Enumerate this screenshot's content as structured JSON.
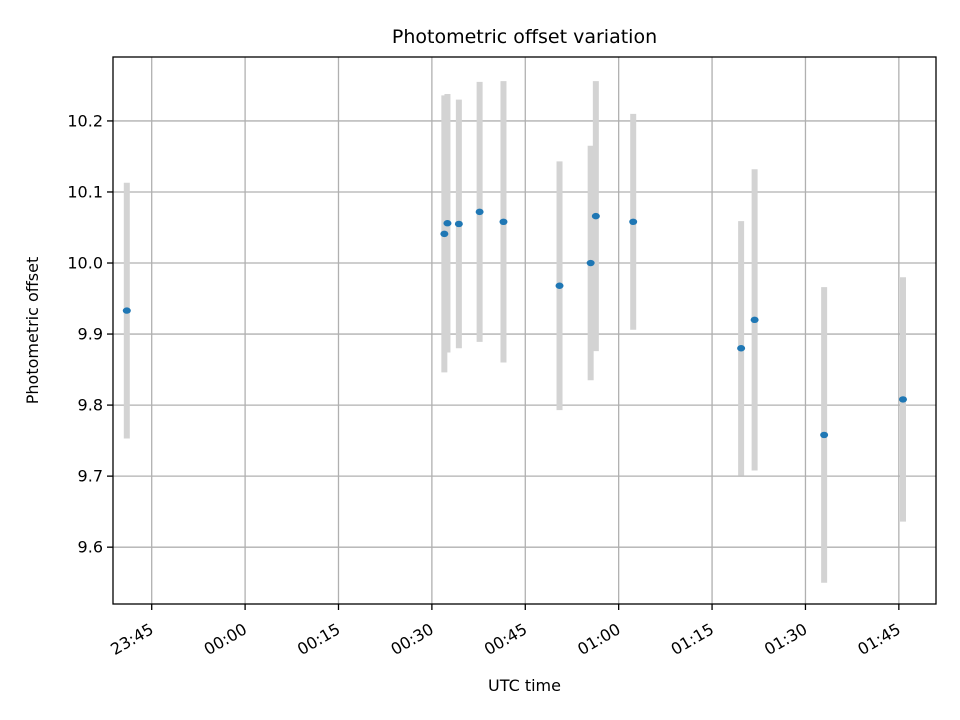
{
  "chart_data": {
    "type": "scatter",
    "title": "Photometric offset variation",
    "xlabel": "UTC time",
    "ylabel": "Photometric offset",
    "xlim": [
      "23:38:47",
      "01:50:58"
    ],
    "ylim": [
      9.52,
      10.29
    ],
    "x_ticks": [
      "23:45",
      "00:00",
      "00:15",
      "00:30",
      "00:45",
      "01:00",
      "01:15",
      "01:30",
      "01:45"
    ],
    "y_ticks": [
      9.6,
      9.7,
      9.8,
      9.9,
      10.0,
      10.1,
      10.2
    ],
    "grid": true,
    "colors": {
      "points": "#1f77b4",
      "errorbars": "#d3d3d3",
      "grid": "#b0b0b0"
    },
    "points": [
      {
        "x": "23:41:00",
        "y": 9.933,
        "yerr": 0.18
      },
      {
        "x": "00:32:00",
        "y": 10.041,
        "yerr": 0.195
      },
      {
        "x": "00:32:30",
        "y": 10.056,
        "yerr": 0.182
      },
      {
        "x": "00:34:20",
        "y": 10.055,
        "yerr": 0.175
      },
      {
        "x": "00:37:40",
        "y": 10.072,
        "yerr": 0.183
      },
      {
        "x": "00:41:30",
        "y": 10.058,
        "yerr": 0.198
      },
      {
        "x": "00:50:30",
        "y": 9.968,
        "yerr": 0.175
      },
      {
        "x": "00:55:30",
        "y": 10.0,
        "yerr": 0.165
      },
      {
        "x": "00:56:20",
        "y": 10.066,
        "yerr": 0.19
      },
      {
        "x": "01:02:20",
        "y": 10.058,
        "yerr": 0.152
      },
      {
        "x": "01:19:40",
        "y": 9.88,
        "yerr": 0.179
      },
      {
        "x": "01:21:50",
        "y": 9.92,
        "yerr": 0.212
      },
      {
        "x": "01:33:00",
        "y": 9.758,
        "yerr": 0.208
      },
      {
        "x": "01:45:40",
        "y": 9.808,
        "yerr": 0.172
      }
    ]
  }
}
